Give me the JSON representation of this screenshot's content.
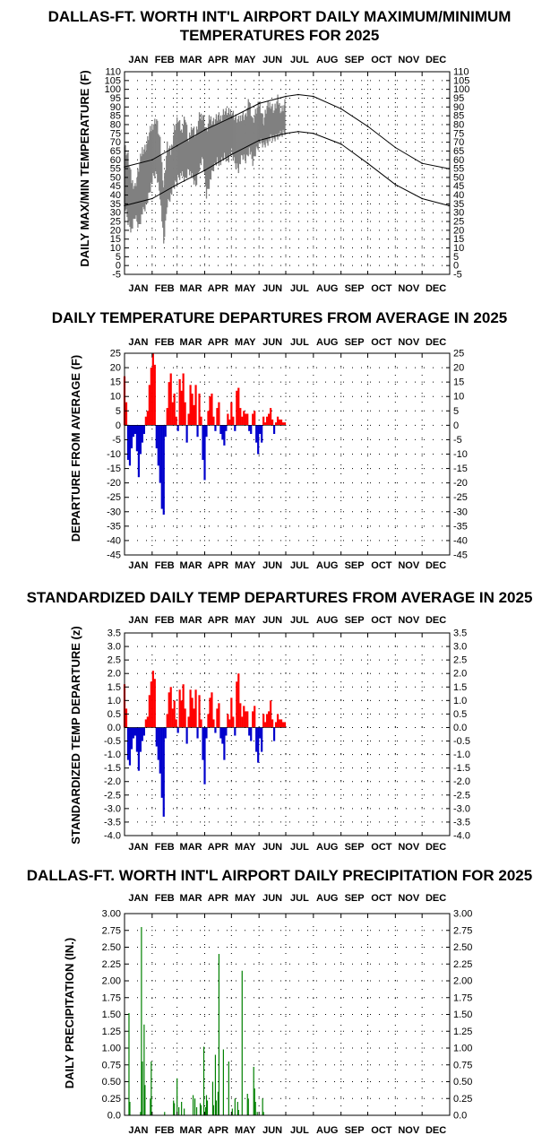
{
  "months": [
    "JAN",
    "FEB",
    "MAR",
    "APR",
    "MAY",
    "JUN",
    "JUL",
    "AUG",
    "SEP",
    "OCT",
    "NOV",
    "DEC"
  ],
  "charts": [
    {
      "id": "maxmin",
      "title_lines": [
        "DALLAS-FT. WORTH INT'L AIRPORT DAILY MAXIMUM/MINIMUM",
        "TEMPERATURES FOR 2025"
      ],
      "ylabel": "DAILY MAX/MIN TEMPERATURE (F)",
      "yticks": [
        "-5",
        "0",
        "5",
        "10",
        "15",
        "20",
        "25",
        "30",
        "35",
        "40",
        "45",
        "50",
        "55",
        "60",
        "65",
        "70",
        "75",
        "80",
        "85",
        "90",
        "95",
        "100",
        "105",
        "110"
      ]
    },
    {
      "id": "departure",
      "title_lines": [
        "DAILY TEMPERATURE DEPARTURES FROM AVERAGE IN 2025"
      ],
      "ylabel": "DEPARTURE FROM AVERAGE (F)",
      "yticks": [
        "-45",
        "-40",
        "-35",
        "-30",
        "-25",
        "-20",
        "-15",
        "-10",
        "-5",
        "0",
        "5",
        "10",
        "15",
        "20",
        "25"
      ]
    },
    {
      "id": "standardized",
      "title_lines": [
        "STANDARDIZED DAILY TEMP DEPARTURES FROM AVERAGE IN 2025"
      ],
      "ylabel": "STANDARDIZED TEMP DEPARTURE (z)",
      "yticks": [
        "-4.0",
        "-3.5",
        "-3.0",
        "-2.5",
        "-2.0",
        "-1.5",
        "-1.0",
        "-0.5",
        "0.0",
        "0.5",
        "1.0",
        "1.5",
        "2.0",
        "2.5",
        "3.0",
        "3.5"
      ]
    },
    {
      "id": "precip",
      "title_lines": [
        "DALLAS-FT. WORTH INT'L AIRPORT DAILY PRECIPITATION FOR 2025"
      ],
      "ylabel": "DAILY PRECIPITATION (IN.)",
      "yticks": [
        "0.0",
        "0.25",
        "0.50",
        "0.75",
        "1.00",
        "1.25",
        "1.50",
        "1.75",
        "2.00",
        "2.25",
        "2.50",
        "2.75",
        "3.00"
      ]
    }
  ],
  "colors": {
    "observed": "#808080",
    "normals": "#000000",
    "above": "#ff0000",
    "below": "#0000cc",
    "precip": "#008000"
  },
  "chart_data": [
    {
      "type": "line",
      "title": "DALLAS-FT. WORTH INT'L AIRPORT DAILY MAXIMUM/MINIMUM TEMPERATURES FOR 2025",
      "ylabel": "DAILY MAX/MIN TEMPERATURE (F)",
      "ylim": [
        -5,
        110
      ],
      "x_unit": "day of year 2025",
      "xlim": [
        1,
        365
      ],
      "grid": "dotted",
      "series": [
        {
          "name": "",
          "role": "normal high",
          "x": [
            1,
            32,
            60,
            91,
            121,
            152,
            182,
            196,
            213,
            244,
            274,
            305,
            335,
            365
          ],
          "values": [
            56,
            60,
            68,
            77,
            84,
            92,
            96,
            97,
            96,
            89,
            79,
            67,
            58,
            55
          ]
        },
        {
          "name": "",
          "role": "normal low",
          "x": [
            1,
            32,
            60,
            91,
            121,
            152,
            182,
            196,
            213,
            244,
            274,
            305,
            335,
            365
          ],
          "values": [
            34,
            38,
            46,
            54,
            63,
            71,
            75,
            76,
            75,
            69,
            58,
            46,
            38,
            34
          ]
        },
        {
          "name": "",
          "role": "observed daily max",
          "x": [
            1,
            5,
            9,
            13,
            17,
            21,
            25,
            29,
            33,
            37,
            41,
            45,
            49,
            53,
            57,
            61,
            65,
            69,
            73,
            77,
            81,
            85,
            89,
            93,
            97,
            101,
            105,
            109,
            113,
            117,
            121,
            125,
            129,
            133,
            137,
            141,
            145,
            149,
            153,
            157,
            161,
            165,
            169,
            173,
            177,
            181
          ],
          "values": [
            68,
            62,
            48,
            45,
            55,
            66,
            67,
            75,
            80,
            83,
            70,
            45,
            68,
            64,
            78,
            83,
            76,
            85,
            70,
            80,
            74,
            84,
            86,
            76,
            84,
            82,
            84,
            84,
            88,
            86,
            88,
            84,
            82,
            86,
            84,
            94,
            82,
            88,
            92,
            82,
            90,
            92,
            88,
            94,
            88,
            92
          ]
        },
        {
          "name": "",
          "role": "observed daily min",
          "x": [
            1,
            5,
            9,
            13,
            17,
            21,
            25,
            29,
            33,
            37,
            41,
            45,
            49,
            53,
            57,
            61,
            65,
            69,
            73,
            77,
            81,
            85,
            89,
            93,
            97,
            101,
            105,
            109,
            113,
            117,
            121,
            125,
            129,
            133,
            137,
            141,
            145,
            149,
            153,
            157,
            161,
            165,
            169,
            173,
            177,
            181
          ],
          "values": [
            35,
            25,
            20,
            28,
            22,
            30,
            33,
            42,
            50,
            52,
            40,
            12,
            35,
            40,
            45,
            50,
            52,
            48,
            55,
            50,
            45,
            56,
            60,
            40,
            48,
            55,
            60,
            58,
            62,
            60,
            64,
            58,
            55,
            62,
            60,
            66,
            58,
            66,
            70,
            68,
            70,
            72,
            72,
            74,
            74,
            76
          ]
        }
      ]
    },
    {
      "type": "bar",
      "title": "DAILY TEMPERATURE DEPARTURES FROM AVERAGE IN 2025",
      "ylabel": "DEPARTURE FROM AVERAGE (F)",
      "ylim": [
        -45,
        25
      ],
      "x_unit": "day of year 2025",
      "xlim": [
        1,
        365
      ],
      "grid": "dotted",
      "x": [
        1,
        3,
        5,
        7,
        9,
        11,
        13,
        15,
        17,
        19,
        21,
        23,
        25,
        27,
        29,
        31,
        33,
        35,
        37,
        39,
        41,
        43,
        45,
        47,
        49,
        51,
        53,
        55,
        57,
        59,
        61,
        63,
        65,
        67,
        69,
        71,
        73,
        75,
        77,
        79,
        81,
        83,
        85,
        87,
        89,
        91,
        93,
        95,
        97,
        99,
        101,
        103,
        105,
        107,
        109,
        111,
        113,
        115,
        117,
        119,
        121,
        123,
        125,
        127,
        129,
        131,
        133,
        135,
        137,
        139,
        141,
        143,
        145,
        147,
        149,
        151,
        153,
        155,
        157,
        159,
        161,
        163,
        165,
        167,
        169,
        171,
        173,
        175,
        177,
        179,
        181
      ],
      "values": [
        17,
        8,
        -12,
        -14,
        -8,
        -4,
        -3,
        -9,
        -18,
        -10,
        -6,
        -3,
        3,
        5,
        14,
        20,
        25,
        21,
        -8,
        -14,
        -20,
        -29,
        -31,
        -4,
        6,
        15,
        18,
        8,
        11,
        3,
        -2,
        16,
        12,
        18,
        8,
        -6,
        4,
        14,
        11,
        7,
        14,
        -4,
        11,
        3,
        -12,
        -19,
        -4,
        5,
        10,
        11,
        3,
        -2,
        6,
        8,
        -3,
        -5,
        -7,
        -2,
        4,
        2,
        8,
        3,
        -2,
        12,
        13,
        6,
        3,
        5,
        4,
        4,
        -2,
        -3,
        4,
        5,
        -6,
        -10,
        -3,
        -6,
        3,
        1,
        3,
        4,
        6,
        2,
        -3,
        1,
        3,
        2,
        2,
        1,
        1
      ]
    },
    {
      "type": "bar",
      "title": "STANDARDIZED DAILY TEMP DEPARTURES FROM AVERAGE IN 2025",
      "ylabel": "STANDARDIZED TEMP DEPARTURE (z)",
      "ylim": [
        -4.0,
        3.5
      ],
      "x_unit": "day of year 2025",
      "xlim": [
        1,
        365
      ],
      "grid": "dotted",
      "x": [
        1,
        3,
        5,
        7,
        9,
        11,
        13,
        15,
        17,
        19,
        21,
        23,
        25,
        27,
        29,
        31,
        33,
        35,
        37,
        39,
        41,
        43,
        45,
        47,
        49,
        51,
        53,
        55,
        57,
        59,
        61,
        63,
        65,
        67,
        69,
        71,
        73,
        75,
        77,
        79,
        81,
        83,
        85,
        87,
        89,
        91,
        93,
        95,
        97,
        99,
        101,
        103,
        105,
        107,
        109,
        111,
        113,
        115,
        117,
        119,
        121,
        123,
        125,
        127,
        129,
        131,
        133,
        135,
        137,
        139,
        141,
        143,
        145,
        147,
        149,
        151,
        153,
        155,
        157,
        159,
        161,
        163,
        165,
        167,
        169,
        171,
        173,
        175,
        177,
        179,
        181
      ],
      "values": [
        1.6,
        0.7,
        -1.2,
        -1.4,
        -0.8,
        -0.4,
        -0.3,
        -0.9,
        -1.6,
        -0.9,
        -0.5,
        -0.3,
        0.3,
        0.4,
        1.2,
        1.7,
        2.1,
        1.8,
        -0.7,
        -1.2,
        -1.7,
        -2.6,
        -3.3,
        -0.4,
        0.5,
        1.3,
        1.5,
        0.7,
        1.0,
        0.3,
        -0.2,
        1.4,
        1.0,
        1.6,
        0.7,
        -0.6,
        0.4,
        1.4,
        1.1,
        0.7,
        1.4,
        -0.4,
        1.2,
        0.3,
        -1.2,
        -2.1,
        -0.4,
        0.5,
        1.1,
        1.3,
        0.3,
        -0.2,
        0.7,
        0.9,
        -0.4,
        -0.6,
        -1.2,
        -0.3,
        0.5,
        0.3,
        1.1,
        0.4,
        -0.3,
        1.7,
        2.0,
        0.9,
        0.4,
        0.8,
        0.6,
        0.6,
        -0.3,
        -0.5,
        0.6,
        0.8,
        -0.9,
        -1.3,
        -0.4,
        -0.9,
        0.5,
        0.2,
        0.5,
        0.6,
        1.0,
        0.3,
        -0.5,
        0.2,
        0.5,
        0.3,
        0.3,
        0.2,
        0.2
      ]
    },
    {
      "type": "bar",
      "title": "DALLAS-FT. WORTH INT'L AIRPORT DAILY PRECIPITATION FOR 2025",
      "ylabel": "DAILY PRECIPITATION (IN.)",
      "ylim": [
        0,
        3.0
      ],
      "x_unit": "day of year 2025",
      "xlim": [
        1,
        365
      ],
      "grid": "dotted",
      "x": [
        6,
        7,
        19,
        20,
        21,
        23,
        24,
        30,
        31,
        46,
        56,
        57,
        57,
        60,
        62,
        65,
        68,
        78,
        80,
        82,
        86,
        87,
        90,
        92,
        93,
        94,
        100,
        101,
        103,
        104,
        106,
        107,
        112,
        118,
        122,
        125,
        128,
        129,
        133,
        139,
        140,
        146,
        147,
        148,
        150,
        156,
        157
      ],
      "values": [
        1.52,
        0.2,
        0.05,
        2.8,
        0.8,
        1.35,
        0.45,
        0.25,
        0.8,
        0.05,
        0.22,
        0.18,
        0.02,
        0.55,
        0.12,
        0.2,
        0.1,
        0.3,
        0.25,
        0.12,
        0.18,
        0.15,
        1.02,
        0.12,
        0.3,
        0.22,
        0.5,
        0.15,
        0.9,
        0.22,
        0.35,
        2.4,
        0.98,
        0.8,
        0.1,
        0.25,
        0.2,
        0.08,
        2.15,
        0.32,
        0.25,
        0.72,
        0.4,
        0.2,
        0.05,
        0.25,
        0.05
      ]
    }
  ]
}
